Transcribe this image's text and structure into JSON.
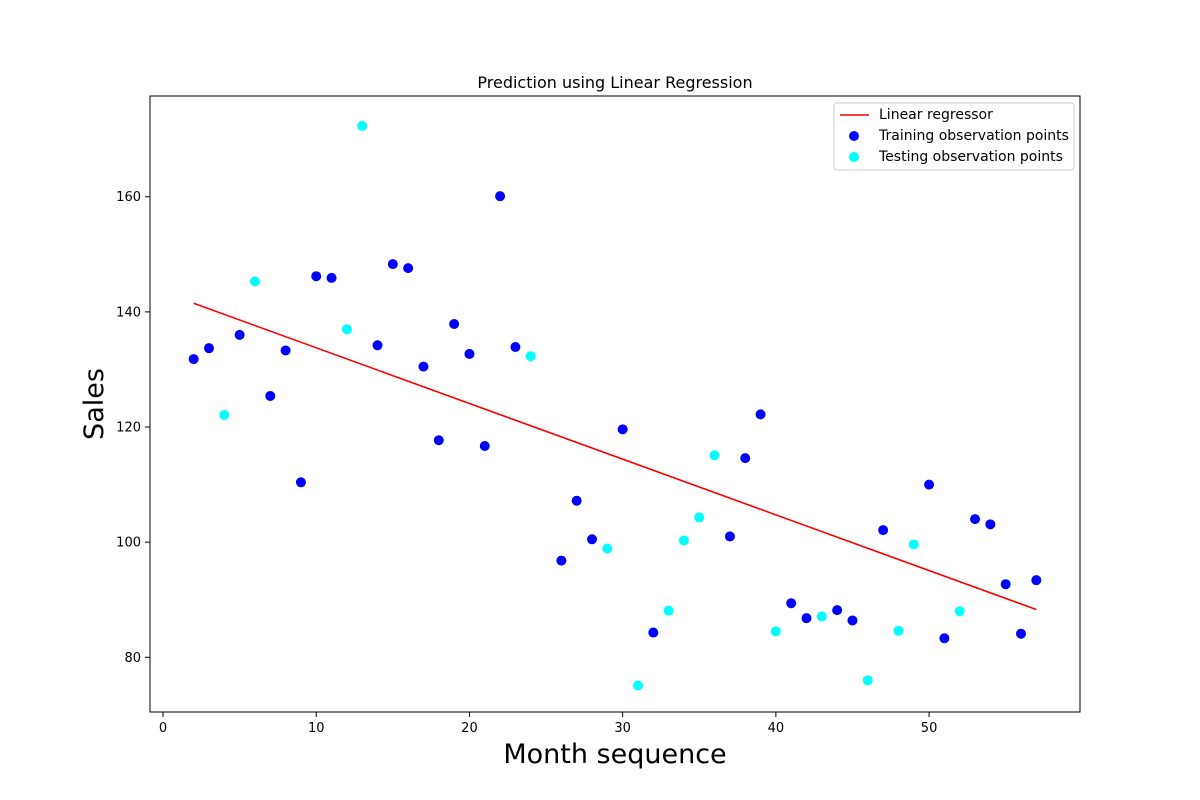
{
  "chart_data": {
    "type": "scatter",
    "title": "Prediction using Linear Regression",
    "xlabel": "Month sequence",
    "ylabel": "Sales",
    "xlim": [
      -0.85,
      59.85
    ],
    "ylim": [
      70.5,
      177.5
    ],
    "xticks": [
      0,
      10,
      20,
      30,
      40,
      50
    ],
    "yticks": [
      80,
      100,
      120,
      140,
      160
    ],
    "grid": false,
    "legend_position": "top-right",
    "line": {
      "name": "Linear regressor",
      "color": "#ff0000",
      "x": [
        2,
        57
      ],
      "y": [
        141.5,
        88.3
      ]
    },
    "series": [
      {
        "name": "Training observation points",
        "color": "#0000ff",
        "points": [
          [
            2,
            131.8
          ],
          [
            3,
            133.7
          ],
          [
            5,
            136.0
          ],
          [
            7,
            125.4
          ],
          [
            8,
            133.3
          ],
          [
            9,
            110.4
          ],
          [
            10,
            146.2
          ],
          [
            11,
            145.9
          ],
          [
            14,
            134.2
          ],
          [
            15,
            148.3
          ],
          [
            16,
            147.6
          ],
          [
            17,
            130.5
          ],
          [
            18,
            117.7
          ],
          [
            19,
            137.9
          ],
          [
            20,
            132.7
          ],
          [
            21,
            116.7
          ],
          [
            22,
            160.1
          ],
          [
            23,
            133.9
          ],
          [
            26,
            96.8
          ],
          [
            27,
            107.2
          ],
          [
            28,
            100.5
          ],
          [
            30,
            119.6
          ],
          [
            32,
            84.3
          ],
          [
            37,
            101.0
          ],
          [
            38,
            114.6
          ],
          [
            39,
            122.2
          ],
          [
            41,
            89.4
          ],
          [
            42,
            86.8
          ],
          [
            44,
            88.2
          ],
          [
            45,
            86.4
          ],
          [
            47,
            102.1
          ],
          [
            50,
            110.0
          ],
          [
            51,
            83.3
          ],
          [
            53,
            104.0
          ],
          [
            54,
            103.1
          ],
          [
            55,
            92.7
          ],
          [
            56,
            84.1
          ],
          [
            57,
            93.4
          ]
        ]
      },
      {
        "name": "Testing observation points",
        "color": "#00ffff",
        "points": [
          [
            4,
            122.1
          ],
          [
            6,
            145.3
          ],
          [
            12,
            137.0
          ],
          [
            13,
            172.3
          ],
          [
            24,
            132.3
          ],
          [
            29,
            98.9
          ],
          [
            31,
            75.1
          ],
          [
            33,
            88.1
          ],
          [
            34,
            100.3
          ],
          [
            35,
            104.3
          ],
          [
            36,
            115.1
          ],
          [
            40,
            84.5
          ],
          [
            43,
            87.1
          ],
          [
            46,
            76.0
          ],
          [
            48,
            84.6
          ],
          [
            49,
            99.6
          ],
          [
            52,
            88.0
          ]
        ]
      }
    ]
  }
}
